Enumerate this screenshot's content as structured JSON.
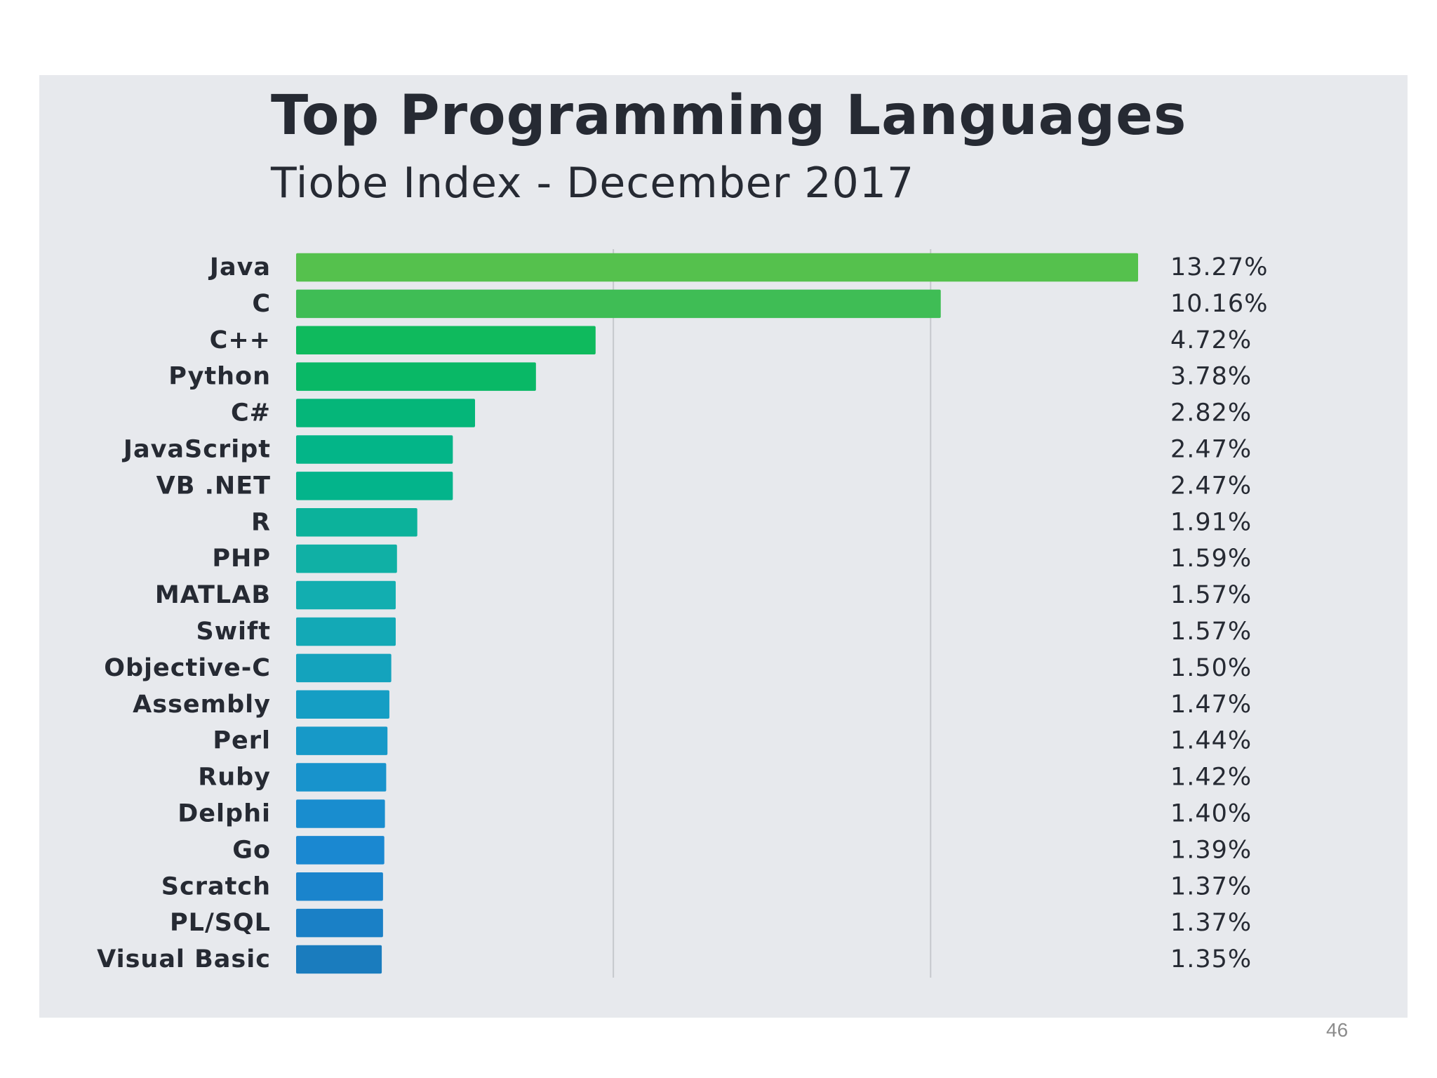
{
  "chart_data": {
    "type": "bar",
    "orientation": "horizontal",
    "title": "Top Programming Languages",
    "subtitle": "Tiobe Index - December 2017",
    "categories": [
      "Java",
      "C",
      "C++",
      "Python",
      "C#",
      "JavaScript",
      "VB .NET",
      "R",
      "PHP",
      "MATLAB",
      "Swift",
      "Objective-C",
      "Assembly",
      "Perl",
      "Ruby",
      "Delphi",
      "Go",
      "Scratch",
      "PL/SQL",
      "Visual Basic"
    ],
    "values": [
      13.27,
      10.16,
      4.72,
      3.78,
      2.82,
      2.47,
      2.47,
      1.91,
      1.59,
      1.57,
      1.57,
      1.5,
      1.47,
      1.44,
      1.42,
      1.4,
      1.39,
      1.37,
      1.37,
      1.35
    ],
    "value_labels": [
      "13.27%",
      "10.16%",
      "4.72%",
      "3.78%",
      "2.82%",
      "2.47%",
      "2.47%",
      "1.91%",
      "1.59%",
      "1.57%",
      "1.57%",
      "1.50%",
      "1.47%",
      "1.44%",
      "1.42%",
      "1.40%",
      "1.39%",
      "1.37%",
      "1.37%",
      "1.35%"
    ],
    "xlim": [
      0,
      13.27
    ],
    "gridlines_x": [
      5,
      10
    ],
    "grid": true,
    "legend": "none",
    "bar_colors": [
      "#55c14d",
      "#3fbd55",
      "#0fba5d",
      "#09b866",
      "#05b679",
      "#03b588",
      "#03b48b",
      "#0cb29b",
      "#10b0a5",
      "#12aeb0",
      "#13a9b6",
      "#14a3bd",
      "#159ec4",
      "#1799c8",
      "#1893cc",
      "#198dcf",
      "#1a88d1",
      "#1a84cc",
      "#1a80c6",
      "#1a7cbe"
    ],
    "gridline_color": "#c6c8cc",
    "panel_color": "#e7e9ed"
  },
  "page_number": "46"
}
